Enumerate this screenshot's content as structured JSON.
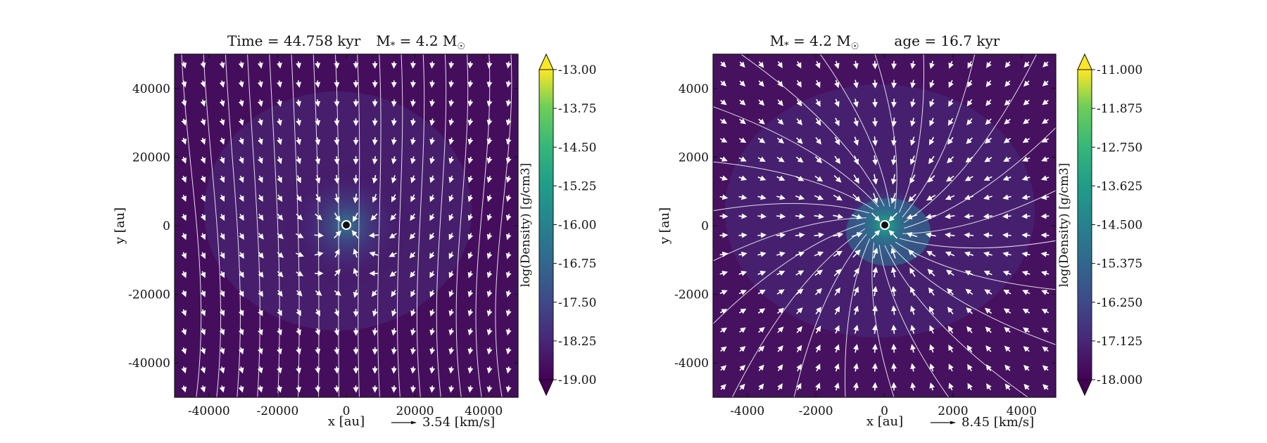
{
  "chart_data": [
    {
      "type": "heatmap",
      "title": "Time = 44.758 kyr    M$_*$ = 4.2 M$_\\odot$",
      "title_parts": {
        "time": "Time = 44.758 kyr",
        "mass_prefix": "M",
        "mass_sub": "*",
        "mass_mid": " = 4.2 M",
        "mass_sun": "☉"
      },
      "xlabel": "x [au]",
      "ylabel": "y [au]",
      "xlim": [
        -50000,
        50000
      ],
      "ylim": [
        -50000,
        50000
      ],
      "x_ticks": [
        -40000,
        -20000,
        0,
        20000,
        40000
      ],
      "y_ticks": [
        -40000,
        -20000,
        0,
        20000,
        40000
      ],
      "x_tick_labels": [
        "-40000",
        "-20000",
        "0",
        "20000",
        "40000"
      ],
      "y_tick_labels": [
        "-40000",
        "-20000",
        "0",
        "20000",
        "40000"
      ],
      "colorbar": {
        "label": "log(Density) [g/cm3]",
        "range": [
          -19.0,
          -13.0
        ],
        "ticks": [
          -13.0,
          -13.75,
          -14.5,
          -15.25,
          -16.0,
          -16.75,
          -17.5,
          -18.25,
          -19.0
        ],
        "tick_labels": [
          "-13.00",
          "-13.75",
          "-14.50",
          "-15.25",
          "-16.00",
          "-16.75",
          "-17.50",
          "-18.25",
          "-19.00"
        ],
        "colormap": "viridis",
        "extend": "both"
      },
      "quiver_key": {
        "label": "3.54 [km/s]"
      },
      "sink": {
        "x": 0,
        "y": 0
      },
      "density_peak": -16.3,
      "density_background": -18.7,
      "field_style": "infall"
    },
    {
      "type": "heatmap",
      "title": "M$_*$ = 4.2 M$_\\odot$        age = 16.7 kyr",
      "title_parts": {
        "mass_prefix": "M",
        "mass_sub": "*",
        "mass_mid": " = 4.2 M",
        "mass_sun": "☉",
        "age": "age = 16.7 kyr"
      },
      "xlabel": "x [au]",
      "ylabel": "y [au]",
      "xlim": [
        -5000,
        5000
      ],
      "ylim": [
        -5000,
        5000
      ],
      "x_ticks": [
        -4000,
        -2000,
        0,
        2000,
        4000
      ],
      "y_ticks": [
        -4000,
        -2000,
        0,
        2000,
        4000
      ],
      "x_tick_labels": [
        "-4000",
        "-2000",
        "0",
        "2000",
        "4000"
      ],
      "y_tick_labels": [
        "-4000",
        "-2000",
        "0",
        "2000",
        "4000"
      ],
      "colorbar": {
        "label": "log(Density) [g/cm3]",
        "range": [
          -18.0,
          -11.0
        ],
        "ticks": [
          -11.0,
          -11.875,
          -12.75,
          -13.625,
          -14.5,
          -15.375,
          -16.25,
          -17.125,
          -18.0
        ],
        "tick_labels": [
          "-11.000",
          "-11.875",
          "-12.750",
          "-13.625",
          "-14.500",
          "-15.375",
          "-16.250",
          "-17.125",
          "-18.000"
        ],
        "colormap": "viridis",
        "extend": "both"
      },
      "quiver_key": {
        "label": "8.45 [km/s]"
      },
      "sink": {
        "x": 0,
        "y": 0
      },
      "density_peak": -14.8,
      "density_background": -17.6,
      "field_style": "radial-infall"
    }
  ]
}
